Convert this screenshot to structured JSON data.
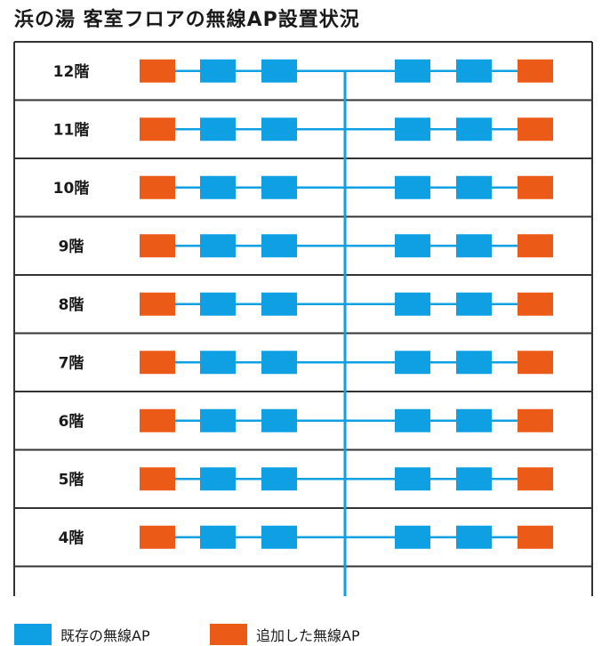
{
  "title": "浜の湯 客室フロアの無線AP設置状況",
  "colors": {
    "existing": "#0fa0e4",
    "added": "#eb5a17",
    "frame": "#333333"
  },
  "floors": [
    "12階",
    "11階",
    "10階",
    "9階",
    "8階",
    "7階",
    "6階",
    "5階",
    "4階"
  ],
  "legend": {
    "existing_label": "既存の無線AP",
    "added_label": "追加した無線AP"
  }
}
